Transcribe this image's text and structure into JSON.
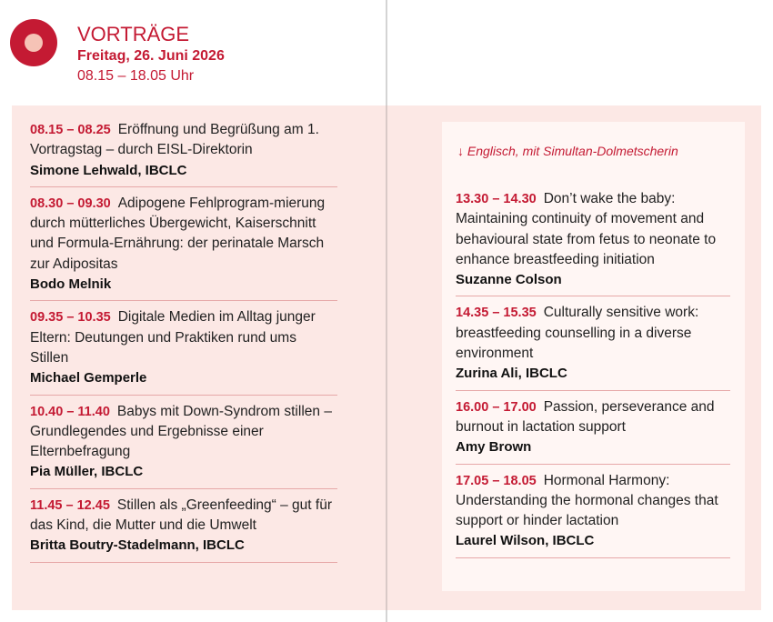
{
  "header": {
    "title": "VORTRÄGE",
    "date": "Freitag, 26. Juni 2026",
    "time_range": "08.15 – 18.05 Uhr",
    "logo_colors": {
      "outer": "#c41a33",
      "inner": "#f6c3b6"
    }
  },
  "left": [
    {
      "time": "08.15 – 08.25",
      "title": "Eröffnung und Begrüßung am 1. Vortragstag – durch EISL-Direktorin",
      "speaker": "Simone Lehwald, IBCLC"
    },
    {
      "time": "08.30 – 09.30",
      "title": "Adipogene Fehlprogram-mierung durch mütterliches Übergewicht, Kaiserschnitt und Formula-Ernährung: der perinatale Marsch zur Adipositas",
      "speaker": "Bodo Melnik"
    },
    {
      "time": "09.35 – 10.35",
      "title": "Digitale Medien im Alltag junger Eltern: Deutungen und Praktiken rund ums Stillen",
      "speaker": "Michael Gemperle"
    },
    {
      "time": "10.40 – 11.40",
      "title": "Babys mit Down-Syndrom stillen – Grundlegendes und Ergebnisse einer Elternbefragung",
      "speaker": "Pia Müller, IBCLC"
    },
    {
      "time": "11.45 – 12.45",
      "title": "Stillen als „Greenfeeding“ – gut für das Kind, die Mutter und die Umwelt",
      "speaker": "Britta Boutry-Stadelmann, IBCLC"
    }
  ],
  "right": {
    "note": "↓  Englisch, mit Simultan-Dolmetscherin",
    "entries": [
      {
        "time": "13.30 – 14.30",
        "title": "Don’t wake the baby: Maintaining continuity of movement and behavioural state from fetus to neonate to enhance breastfeeding initiation",
        "speaker": "Suzanne Colson"
      },
      {
        "time": "14.35 – 15.35",
        "title": "Culturally sensitive work: breastfeeding counselling in a diverse environment",
        "speaker": "Zurina Ali, IBCLC"
      },
      {
        "time": "16.00 – 17.00",
        "title": "Passion, perseverance and burnout in lactation support",
        "speaker": "Amy Brown"
      },
      {
        "time": "17.05 – 18.05",
        "title": "Hormonal Harmony: Understanding the hormonal changes that support or hinder lactation",
        "speaker": "Laurel Wilson, IBCLC"
      }
    ]
  }
}
